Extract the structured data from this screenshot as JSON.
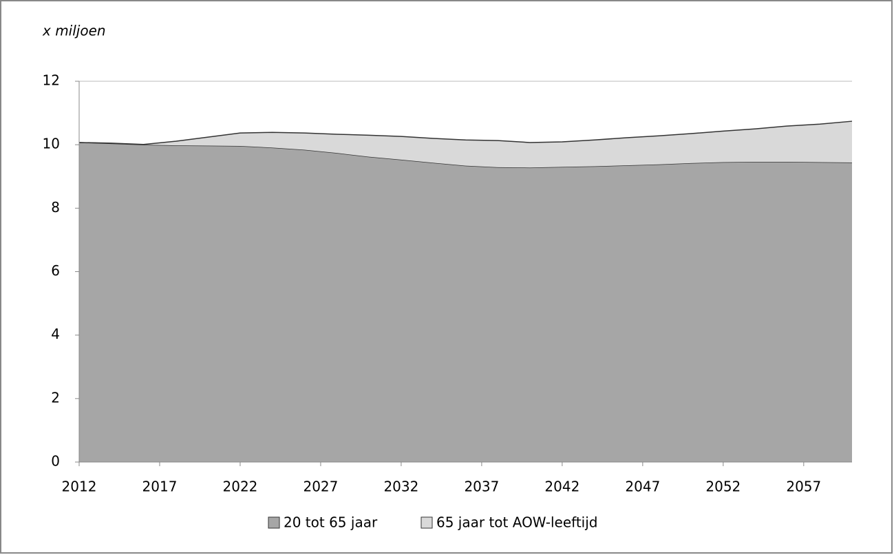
{
  "chart_data": {
    "type": "stacked-area",
    "y_axis_label": "x miljoen",
    "x": [
      2012,
      2014,
      2016,
      2018,
      2020,
      2022,
      2024,
      2026,
      2028,
      2030,
      2032,
      2034,
      2036,
      2038,
      2040,
      2042,
      2044,
      2046,
      2048,
      2050,
      2052,
      2054,
      2056,
      2058,
      2060
    ],
    "series": [
      {
        "name": "20 tot 65 jaar",
        "color": "#a6a6a6",
        "values": [
          10.07,
          10.04,
          10.0,
          9.98,
          9.97,
          9.96,
          9.91,
          9.84,
          9.74,
          9.62,
          9.53,
          9.43,
          9.34,
          9.29,
          9.28,
          9.3,
          9.32,
          9.35,
          9.38,
          9.42,
          9.45,
          9.46,
          9.46,
          9.45,
          9.44
        ]
      },
      {
        "name": "65 jaar tot AOW-leeftijd",
        "color": "#d9d9d9",
        "values": [
          0,
          0.01,
          0.01,
          0.13,
          0.27,
          0.41,
          0.48,
          0.53,
          0.59,
          0.68,
          0.73,
          0.77,
          0.81,
          0.84,
          0.79,
          0.79,
          0.83,
          0.87,
          0.9,
          0.93,
          0.98,
          1.04,
          1.13,
          1.2,
          1.3
        ]
      }
    ],
    "xlim": [
      2012,
      2060
    ],
    "xticks": [
      2012,
      2017,
      2022,
      2027,
      2032,
      2037,
      2042,
      2047,
      2052,
      2057
    ],
    "ylim": [
      0,
      12
    ],
    "yticks": [
      0,
      2,
      4,
      6,
      8,
      10,
      12
    ],
    "grid": true
  }
}
